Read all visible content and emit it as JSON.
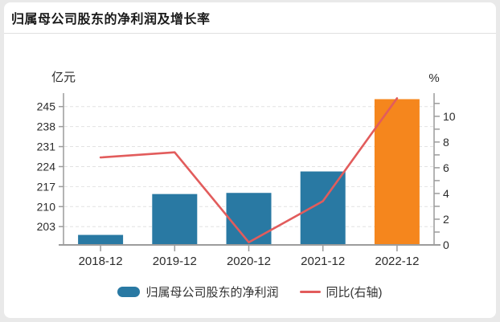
{
  "header": {
    "title": "归属母公司股东的净利润及增长率"
  },
  "chart_data": {
    "type": "bar",
    "combo": "bar+line, dual axis",
    "categories": [
      "2018-12",
      "2019-12",
      "2020-12",
      "2021-12",
      "2022-12"
    ],
    "series": [
      {
        "name": "归属母公司股东的净利润",
        "type": "bar",
        "axis": "left",
        "unit": "亿元",
        "values": [
          200.1,
          214.4,
          214.8,
          222.3,
          247.6
        ],
        "bar_colors": [
          "#2979a3",
          "#2979a3",
          "#2979a3",
          "#2979a3",
          "#f5861d"
        ]
      },
      {
        "name": "同比(右轴)",
        "type": "line",
        "axis": "right",
        "unit": "%",
        "values": [
          6.8,
          7.2,
          0.2,
          3.4,
          11.4
        ],
        "color": "#e25c5c"
      }
    ],
    "left_axis": {
      "unit": "亿元",
      "ticks": [
        203,
        210,
        217,
        224,
        231,
        238,
        245
      ],
      "min": 196.6,
      "max": 249.7
    },
    "right_axis": {
      "unit": "%",
      "labeled_ticks": [
        0,
        2,
        4,
        6,
        8,
        10
      ],
      "all_ticks": [
        0,
        1,
        2,
        3,
        4,
        5,
        6,
        7,
        8,
        9,
        10,
        11
      ],
      "min": 0,
      "max": 11.8
    },
    "grid": {
      "horizontal_dashed": true,
      "color": "#e2e2e2"
    },
    "axis_color": "#9c9c9c",
    "text_color": "#2b2b2b",
    "legend_position": "bottom"
  }
}
